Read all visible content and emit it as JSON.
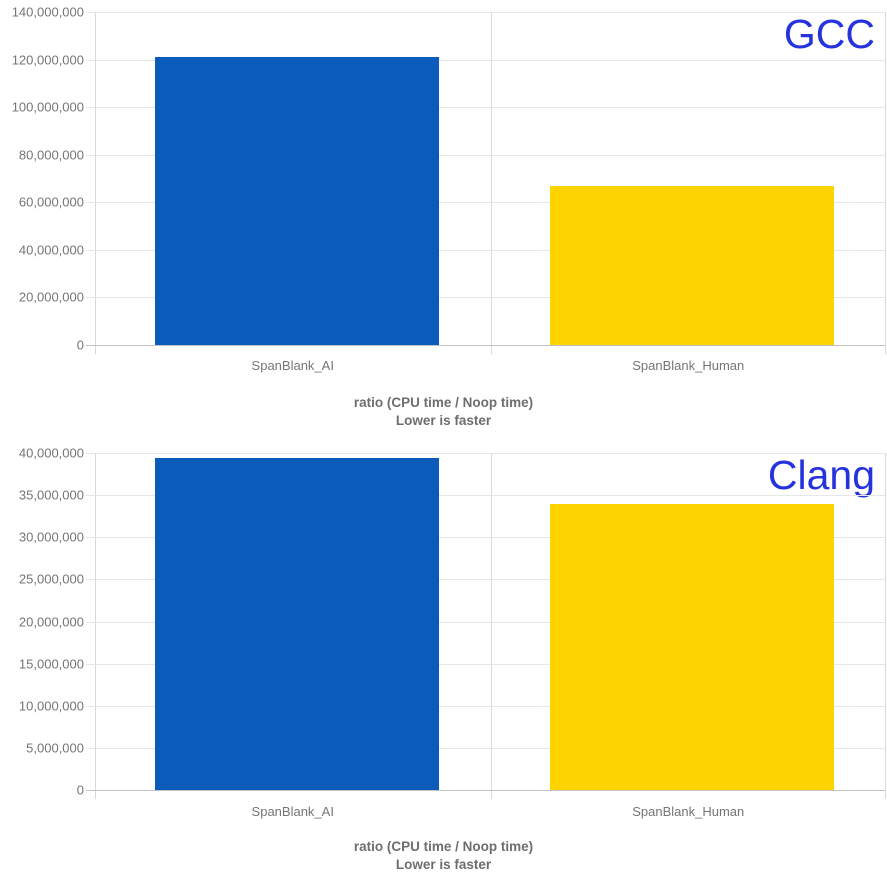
{
  "page": {
    "background_color": "#ffffff",
    "description": "Two stacked vertical bar charts comparing benchmark ratios for GCC and Clang compilers"
  },
  "colors": {
    "bar_blue": "#0b5cba",
    "bar_yellow": "#fdd400",
    "corner_label_blue": "#2433dd",
    "tick_text_gray": "#757575",
    "axis_title_gray": "#6e6e6e",
    "gridline_gray": "#e6e6e6",
    "baseline_gray": "#c2c2c2",
    "axis_line_gray": "#d9d9d9"
  },
  "chart_data": [
    {
      "type": "bar",
      "title": "GCC",
      "title_color": "#2433dd",
      "title_position": "top-right",
      "categories": [
        "SpanBlank_AI",
        "SpanBlank_Human"
      ],
      "values": [
        121000000,
        67000000
      ],
      "bar_colors": [
        "#0b5cba",
        "#fdd400"
      ],
      "xlabel_line1": "ratio (CPU time / Noop time)",
      "xlabel_line2": "Lower is faster",
      "ylabel": "",
      "ylim": [
        0,
        140000000
      ],
      "ytick_step": 20000000,
      "ytick_labels": [
        "0",
        "20,000,000",
        "40,000,000",
        "60,000,000",
        "80,000,000",
        "100,000,000",
        "120,000,000",
        "140,000,000"
      ],
      "grid": true,
      "legend": "none"
    },
    {
      "type": "bar",
      "title": "Clang",
      "title_color": "#2433dd",
      "title_position": "top-right",
      "categories": [
        "SpanBlank_AI",
        "SpanBlank_Human"
      ],
      "values": [
        39400000,
        34000000
      ],
      "bar_colors": [
        "#0b5cba",
        "#fdd400"
      ],
      "xlabel_line1": "ratio (CPU time / Noop time)",
      "xlabel_line2": "Lower is faster",
      "ylabel": "",
      "ylim": [
        0,
        40000000
      ],
      "ytick_step": 5000000,
      "ytick_labels": [
        "0",
        "5,000,000",
        "10,000,000",
        "15,000,000",
        "20,000,000",
        "25,000,000",
        "30,000,000",
        "35,000,000",
        "40,000,000"
      ],
      "grid": true,
      "legend": "none"
    }
  ]
}
